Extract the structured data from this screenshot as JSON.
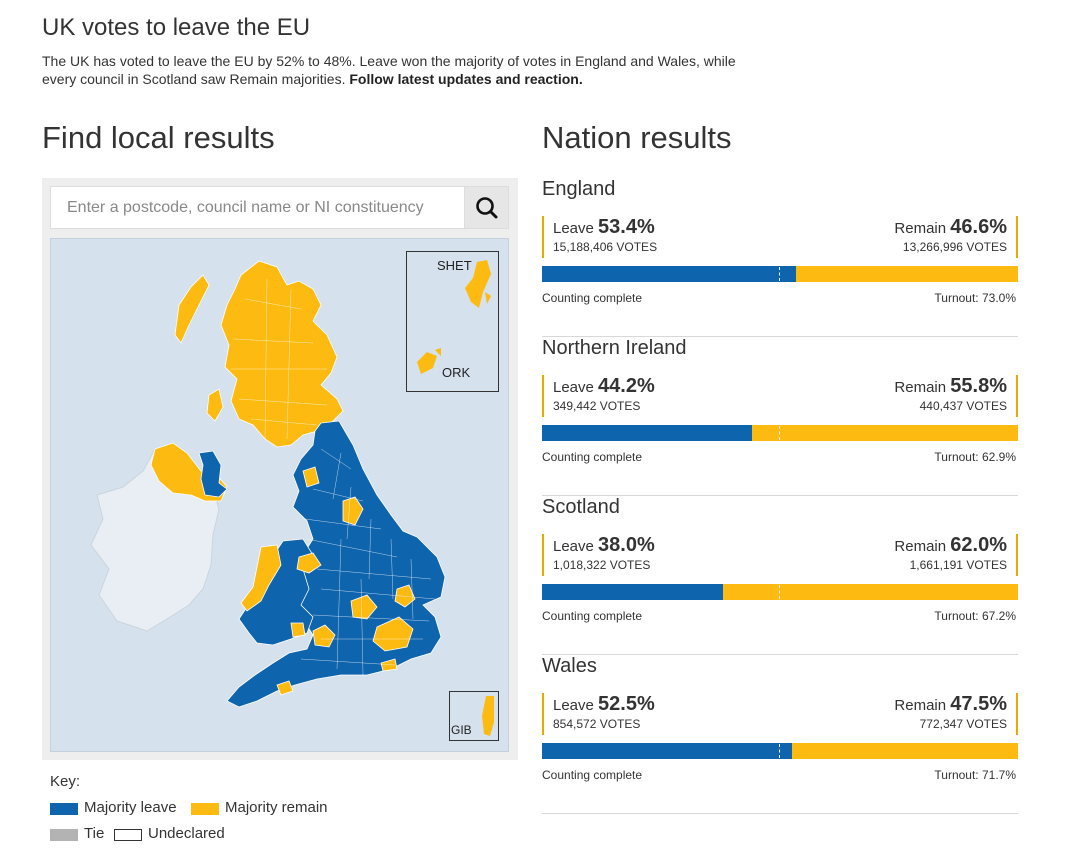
{
  "headline": "UK votes to leave the EU",
  "summary": {
    "text": "The UK has voted to leave the EU by 52% to 48%. Leave won the majority of votes in England and Wales, while every council in Scotland saw Remain majorities.",
    "follow_link": "Follow latest updates and reaction."
  },
  "find": {
    "title": "Find local results",
    "search_placeholder": "Enter a postcode, council name or NI constituency",
    "search_icon": "search-icon",
    "insets": {
      "shetland": "SHET",
      "orkney": "ORK",
      "gibraltar": "GIB"
    }
  },
  "key": {
    "title": "Key:",
    "items": [
      {
        "label": "Majority leave",
        "color": "#0f64ae"
      },
      {
        "label": "Majority remain",
        "color": "#fdbb12"
      },
      {
        "label": "Tie",
        "color": "#b3b3b3"
      },
      {
        "label": "Undeclared",
        "color": "#ffffff"
      }
    ]
  },
  "nation": {
    "title": "Nation results",
    "leave_label": "Leave",
    "remain_label": "Remain",
    "nations": [
      {
        "name": "England",
        "leave_pct": "53.4%",
        "leave_votes": "15,188,406 VOTES",
        "remain_pct": "46.6%",
        "remain_votes": "13,266,996 VOTES",
        "leave_share": 53.4,
        "status": "Counting complete",
        "turnout": "Turnout: 73.0%"
      },
      {
        "name": "Northern Ireland",
        "leave_pct": "44.2%",
        "leave_votes": "349,442 VOTES",
        "remain_pct": "55.8%",
        "remain_votes": "440,437 VOTES",
        "leave_share": 44.2,
        "status": "Counting complete",
        "turnout": "Turnout: 62.9%"
      },
      {
        "name": "Scotland",
        "leave_pct": "38.0%",
        "leave_votes": "1,018,322 VOTES",
        "remain_pct": "62.0%",
        "remain_votes": "1,661,191 VOTES",
        "leave_share": 38.0,
        "status": "Counting complete",
        "turnout": "Turnout: 67.2%"
      },
      {
        "name": "Wales",
        "leave_pct": "52.5%",
        "leave_votes": "854,572 VOTES",
        "remain_pct": "47.5%",
        "remain_votes": "772,347 VOTES",
        "leave_share": 52.5,
        "status": "Counting complete",
        "turnout": "Turnout: 71.7%"
      }
    ]
  },
  "colors": {
    "leave": "#0f64ae",
    "remain": "#fdbb12",
    "sea": "#d5e1ec",
    "ireland": "#e8eef4"
  }
}
